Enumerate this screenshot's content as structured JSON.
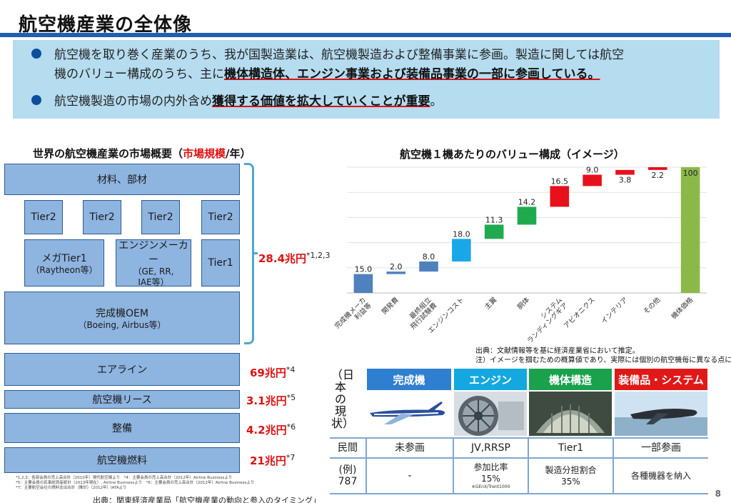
{
  "title": "航空機産業の全体像",
  "banner": {
    "line1": "航空機を取り巻く産業のうち、我が国製造業は、航空機製造および整備事業に参画。製造に関しては航空",
    "line2_plain": "機のバリュー構成のうち、主に",
    "line2_emph": "機体構造体、エンジン事業および装備品事業の一部に参画している。",
    "line3_plain": "航空機製造の市場の内外含め",
    "line3_emph": "獲得する価値を拡大していくことが重要",
    "line3_end": "。"
  },
  "market": {
    "title_prefix": "世界の航空機産業の市場概要（",
    "title_red": "市場規模",
    "title_suffix": "/年）",
    "materials": "材料、部材",
    "tier2": [
      "Tier2",
      "Tier2",
      "Tier2",
      "Tier2"
    ],
    "mega_tier1": "メガTier1",
    "mega_tier1_sub": "（Raytheon等）",
    "engine_maker": "エンジンメーカー",
    "engine_maker_sub1": "（GE, RR,",
    "engine_maker_sub2": "IAE等）",
    "tier1": "Tier1",
    "oem": "完成機OEM",
    "oem_sub": "（Boeing, Airbus等）",
    "airline": "エアライン",
    "lease": "航空機リース",
    "maintenance": "整備",
    "fuel": "航空機燃料",
    "total_value": "28.4兆円",
    "total_note": "*1,2,3",
    "airline_value": "69兆円",
    "airline_note": "*4",
    "lease_value": "3.1兆円",
    "lease_note": "*5",
    "maintenance_value": "4.2兆円",
    "maintenance_note": "*6",
    "fuel_value": "21兆円",
    "fuel_note": "*7",
    "footnote1": "*1,2,3：各部会員の売上高合計（2010年）現代航空論より　*4：主要会員の売上高合計（2012年）Airline Businessより",
    "footnote2": "*5：主要会員の民事総資産統計（2013年現在）, Airline Businessより　*6：主要会員の売上高合計（2012年）Airline Businessより",
    "footnote3": "*7：主要航空会社の燃料支出合計（推計）（2012年）IATAより",
    "source": "出典：関東経済産業局「航空機産業の動向と参入のタイミング」"
  },
  "value_chart": {
    "title": "航空機１機あたりのバリュー構成（イメージ）",
    "note1": "出典：文献情報等を基に経済産業省において推定。",
    "note2": "注）イメージを掴むための概算値であり、実際には個別の航空機毎に異なる点に留意"
  },
  "chart_data": {
    "type": "bar",
    "subtype": "waterfall",
    "title": "航空機１機あたりのバリュー構成（イメージ）",
    "categories": [
      "完成機メーカ利益等",
      "開発費",
      "最終組立飛行試験費",
      "エンジンコスト",
      "主翼",
      "胴体",
      "システムランディングギア",
      "アビオニクス",
      "インテリア",
      "その他",
      "機体価格"
    ],
    "category_lines": [
      [
        "完成機メーカ",
        "利益等"
      ],
      [
        "開発費"
      ],
      [
        "最終組立",
        "飛行試験費"
      ],
      [
        "エンジンコスト"
      ],
      [
        "主翼"
      ],
      [
        "胴体"
      ],
      [
        "システム",
        "ランディングギア"
      ],
      [
        "アビオニクス"
      ],
      [
        "インテリア"
      ],
      [
        "その他"
      ],
      [
        "機体価格"
      ]
    ],
    "values": [
      15.0,
      2.0,
      8.0,
      18.0,
      11.3,
      14.2,
      16.5,
      9.0,
      3.8,
      2.2,
      100
    ],
    "value_labels": [
      "15.0",
      "2.0",
      "8.0",
      "18.0",
      "11.3",
      "14.2",
      "16.5",
      "9.0",
      "3.8",
      "2.2",
      "100"
    ],
    "colors": [
      "#4f81bd",
      "#4f81bd",
      "#4f81bd",
      "#1aa7e8",
      "#1faa4f",
      "#1faa4f",
      "#e8101a",
      "#e8101a",
      "#e8101a",
      "#e8101a",
      "#8cb84a"
    ],
    "ylim": [
      0,
      100
    ],
    "grid": true,
    "legend": "none"
  },
  "current_status": {
    "vertical_label": "（日本の現状）",
    "headers": [
      {
        "label": "完成機",
        "color": "#2f7fd0"
      },
      {
        "label": "エンジン",
        "color": "#14a8e0"
      },
      {
        "label": "機体構造",
        "color": "#1aa14c"
      },
      {
        "label": "装備品・システム",
        "color": "#e01818"
      }
    ],
    "row1_label": "民間",
    "row1": [
      "未参画",
      "JV,RRSP",
      "Tier1",
      "一部参画"
    ],
    "row2_label1": "(例)",
    "row2_label2": "787",
    "row2_aircraft": "-",
    "row2_engine1": "参加比率",
    "row2_engine2": "15%",
    "row2_engine_note": "※GEnX/Trent1000",
    "row2_structure1": "製造分担割合",
    "row2_structure2": "35%",
    "row2_equipment": "各種機器を納入"
  },
  "page_number": "8"
}
